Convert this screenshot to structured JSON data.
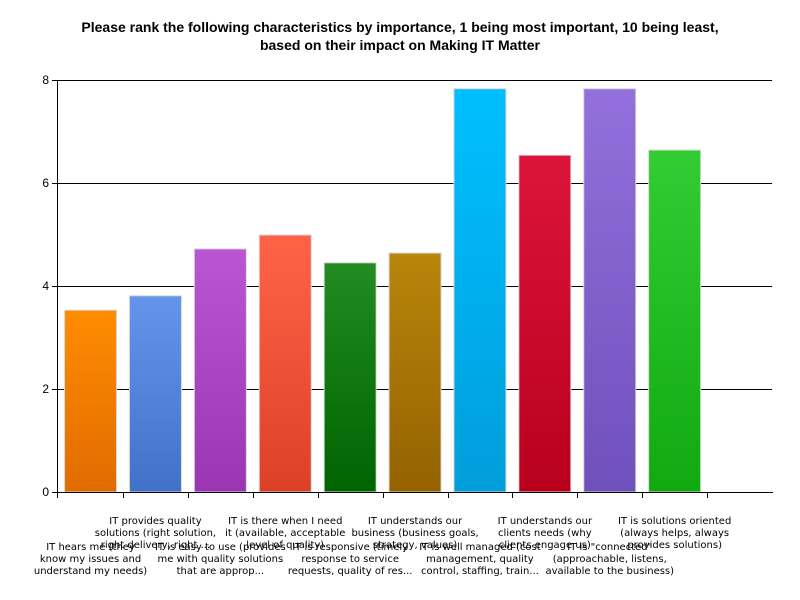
{
  "chart_data": {
    "type": "bar",
    "title_lines": [
      "Please rank the following characteristics by importance, 1 being most important, 10 being least,",
      "based on their impact on Making IT Matter"
    ],
    "xlabel": "",
    "ylabel": "",
    "ylim": [
      0,
      8
    ],
    "yticks": [
      0,
      2,
      4,
      6,
      8
    ],
    "grid": true,
    "legend": "none",
    "categories": [
      [
        "IT hears me (they",
        "know my issues and",
        "understand my needs)"
      ],
      [
        "IT provides quality",
        "solutions (right solution,",
        "right delivery, right ..."
      ],
      [
        "IT is easy to use (provides",
        "me with quality solutions",
        "that are approp..."
      ],
      [
        "IT is there when I need",
        "it (available, acceptable",
        "level of quality)"
      ],
      [
        "IT is responsive (timely",
        "response to service",
        "requests, quality of res..."
      ],
      [
        "IT understands our",
        "business (business goals,",
        "strategy, values)"
      ],
      [
        "IT is well managed (cost",
        "management, quality",
        "control, staffing, train..."
      ],
      [
        "IT understands our",
        "clients needs (why",
        "clients engage us)"
      ],
      [
        "IT is \"connected\"",
        "(approachable, listens,",
        "available to the business)"
      ],
      [
        "IT is solutions oriented",
        "(always helps, always",
        "provides solutions)"
      ]
    ],
    "values": [
      3.53,
      3.81,
      4.72,
      4.99,
      4.45,
      4.64,
      7.83,
      6.54,
      7.83,
      6.64
    ],
    "colors": [
      [
        "#ff8c00",
        "#e06c00"
      ],
      [
        "#6495ed",
        "#3f72c8"
      ],
      [
        "#ba55d3",
        "#9a35b3"
      ],
      [
        "#ff6347",
        "#dc4128"
      ],
      [
        "#228b22",
        "#006400"
      ],
      [
        "#b8860b",
        "#946200"
      ],
      [
        "#00bfff",
        "#009edb"
      ],
      [
        "#dc143c",
        "#b8001c"
      ],
      [
        "#9370db",
        "#7050bb"
      ],
      [
        "#32cd32",
        "#10aa10"
      ]
    ]
  }
}
